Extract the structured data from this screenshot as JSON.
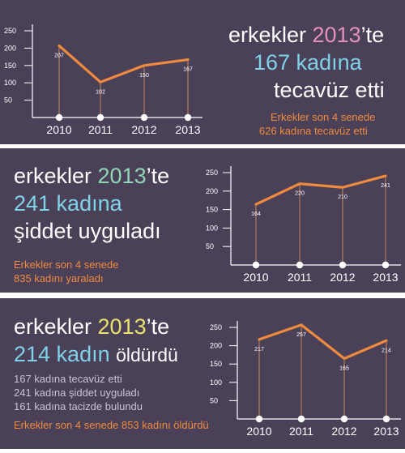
{
  "colors": {
    "background": "#4a4159",
    "line": "#f08a3c",
    "stem": "#c7855a",
    "year_pink": "#e58fc0",
    "number_teal": "#7fd2e8",
    "year_green": "#8fd6b5",
    "year_yellow": "#e9e36a",
    "highlight_orange": "#f08a3c",
    "muted_text": "#c9c3d0"
  },
  "panels": [
    {
      "headline": [
        {
          "text": "erkekler ",
          "style": "white"
        },
        {
          "text": "2013",
          "style": "pink"
        },
        {
          "text": "’te",
          "style": "white"
        }
      ],
      "line2": [
        {
          "text": "167 kadına",
          "style": "teal"
        }
      ],
      "line3": [
        {
          "text": "tecavüz etti",
          "style": "white"
        }
      ],
      "note_lines": [
        "Erkekler son 4 senede",
        "626 kadına tecavüz etti"
      ]
    },
    {
      "headline": [
        {
          "text": "erkekler ",
          "style": "white"
        },
        {
          "text": "2013",
          "style": "green"
        },
        {
          "text": "’te",
          "style": "white"
        }
      ],
      "line2": [
        {
          "text": "241 kadına",
          "style": "teal"
        }
      ],
      "line3": [
        {
          "text": "şiddet uyguladı",
          "style": "white"
        }
      ],
      "note_lines": [
        "Erkekler son 4 senede",
        "835 kadını yaraladı"
      ]
    },
    {
      "headline": [
        {
          "text": "erkekler ",
          "style": "white"
        },
        {
          "text": "2013",
          "style": "yellow"
        },
        {
          "text": "’te",
          "style": "white"
        }
      ],
      "line2": [
        {
          "text": "214 kadın ",
          "style": "teal"
        },
        {
          "text": "öldürdü",
          "style": "white"
        }
      ],
      "stats": [
        "167 kadına tecavüz etti",
        "241 kadına şiddet uyguladı",
        "161 kadına tacizde bulundu"
      ],
      "note_lines": [
        "Erkekler son 4 senede 853 kadını öldürdü"
      ]
    }
  ],
  "chart_data": [
    {
      "type": "line",
      "x": [
        "2010",
        "2011",
        "2012",
        "2013"
      ],
      "values": [
        207,
        102,
        150,
        167
      ],
      "data_labels": [
        "207",
        "102",
        "150",
        "167"
      ],
      "y_ticks": [
        50,
        100,
        150,
        200,
        250
      ],
      "ylim": [
        0,
        250
      ],
      "title": "",
      "xlabel": "",
      "ylabel": ""
    },
    {
      "type": "line",
      "x": [
        "2010",
        "2011",
        "2012",
        "2013"
      ],
      "values": [
        164,
        220,
        210,
        241
      ],
      "data_labels": [
        "164",
        "220",
        "210",
        "241"
      ],
      "y_ticks": [
        50,
        100,
        150,
        200,
        250
      ],
      "ylim": [
        0,
        250
      ],
      "title": "",
      "xlabel": "",
      "ylabel": ""
    },
    {
      "type": "line",
      "x": [
        "2010",
        "2011",
        "2012",
        "2013"
      ],
      "values": [
        217,
        257,
        165,
        214
      ],
      "data_labels": [
        "217",
        "257",
        "165",
        "214"
      ],
      "y_ticks": [
        50,
        100,
        150,
        200,
        250
      ],
      "ylim": [
        0,
        250
      ],
      "title": "",
      "xlabel": "",
      "ylabel": ""
    }
  ]
}
